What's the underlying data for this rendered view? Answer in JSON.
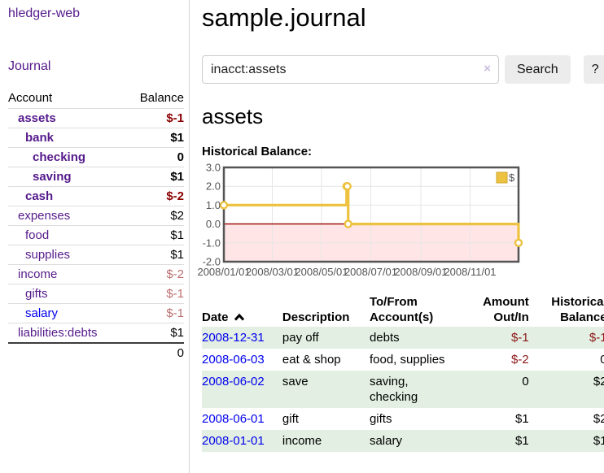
{
  "sidebar": {
    "brand": "hledger-web",
    "nav": {
      "journal_label": "Journal"
    },
    "accounts_table": {
      "headers": {
        "account": "Account",
        "balance": "Balance"
      },
      "rows": [
        {
          "account": "assets",
          "balance": "$-1",
          "depth": 1,
          "bold": true,
          "neg": "strong"
        },
        {
          "account": "bank",
          "balance": "$1",
          "depth": 2,
          "bold": true,
          "neg": null
        },
        {
          "account": "checking",
          "balance": "0",
          "depth": 3,
          "bold": true,
          "neg": null
        },
        {
          "account": "saving",
          "balance": "$1",
          "depth": 3,
          "bold": true,
          "neg": null
        },
        {
          "account": "cash",
          "balance": "$-2",
          "depth": 2,
          "bold": true,
          "neg": "strong"
        },
        {
          "account": "expenses",
          "balance": "$2",
          "depth": 1,
          "bold": false,
          "neg": null
        },
        {
          "account": "food",
          "balance": "$1",
          "depth": 2,
          "bold": false,
          "neg": null
        },
        {
          "account": "supplies",
          "balance": "$1",
          "depth": 2,
          "bold": false,
          "neg": null
        },
        {
          "account": "income",
          "balance": "$-2",
          "depth": 1,
          "bold": false,
          "neg": "muted"
        },
        {
          "account": "gifts",
          "balance": "$-1",
          "depth": 2,
          "bold": false,
          "neg": "muted"
        },
        {
          "account": "salary",
          "balance": "$-1",
          "depth": 2,
          "bold": false,
          "neg": "muted",
          "link_color": "blue"
        },
        {
          "account": "liabilities:debts",
          "balance": "$1",
          "depth": 1,
          "bold": false,
          "neg": null
        }
      ],
      "total": "0"
    }
  },
  "header": {
    "title": "sample.journal"
  },
  "search": {
    "value": "inacct:assets",
    "clear_icon": "×",
    "button_label": "Search",
    "help_label": "?"
  },
  "account_page": {
    "heading": "assets",
    "chart_label": "Historical Balance:"
  },
  "chart_data": {
    "type": "line",
    "step": true,
    "title": "Historical Balance",
    "series": [
      {
        "name": "$",
        "color": "#edc240",
        "points": [
          [
            "2008-01-01",
            1
          ],
          [
            "2008-06-01",
            2
          ],
          [
            "2008-06-02",
            2
          ],
          [
            "2008-06-03",
            0
          ],
          [
            "2008-12-31",
            -1
          ]
        ]
      }
    ],
    "xrange": [
      "2008-01-01",
      "2008-12-31"
    ],
    "ylim": [
      -2,
      3
    ],
    "yticks": [
      {
        "v": 3,
        "label": "3.0"
      },
      {
        "v": 2,
        "label": "2.0"
      },
      {
        "v": 1,
        "label": "1.0"
      },
      {
        "v": 0,
        "label": "0.0"
      },
      {
        "v": -1,
        "label": "-1.0"
      },
      {
        "v": -2,
        "label": "-2.0"
      }
    ],
    "xticks": [
      {
        "date": "2008-01-01",
        "label": "2008/01/01"
      },
      {
        "date": "2008-03-01",
        "label": "2008/03/01"
      },
      {
        "date": "2008-05-01",
        "label": "2008/05/01"
      },
      {
        "date": "2008-07-01",
        "label": "2008/07/01"
      },
      {
        "date": "2008-09-01",
        "label": "2008/09/01"
      },
      {
        "date": "2008-11-01",
        "label": "2008/11/01"
      }
    ],
    "grid": true,
    "legend": {
      "label": "$",
      "position": "top-right"
    },
    "negative_region_color": "rgba(255,0,0,0.10)",
    "zero_line_color": "#9b0000"
  },
  "transactions": {
    "headers": {
      "date": "Date",
      "description": "Description",
      "tofrom": "To/From Account(s)",
      "amount": "Amount Out/In",
      "balance": "Historical Balance"
    },
    "sort": {
      "column": "date",
      "direction": "asc"
    },
    "rows": [
      {
        "date": "2008-12-31",
        "description": "pay off",
        "accounts": "debts",
        "amount": "$-1",
        "balance": "$-1",
        "amount_neg": true,
        "balance_neg": true
      },
      {
        "date": "2008-06-03",
        "description": "eat & shop",
        "accounts": "food, supplies",
        "amount": "$-2",
        "balance": "0",
        "amount_neg": true,
        "balance_neg": false
      },
      {
        "date": "2008-06-02",
        "description": "save",
        "accounts": "saving, checking",
        "amount": "0",
        "balance": "$2",
        "amount_neg": false,
        "balance_neg": false
      },
      {
        "date": "2008-06-01",
        "description": "gift",
        "accounts": "gifts",
        "amount": "$1",
        "balance": "$2",
        "amount_neg": false,
        "balance_neg": false
      },
      {
        "date": "2008-01-01",
        "description": "income",
        "accounts": "salary",
        "amount": "$1",
        "balance": "$1",
        "amount_neg": false,
        "balance_neg": false
      }
    ]
  },
  "colors": {
    "link_purple": "#551a8b",
    "link_blue": "#0000ee",
    "negative_strong": "#8b0000",
    "negative_muted": "#bc6f6f",
    "table_negative": "#8d1616",
    "row_stripe_green": "#e2efe2",
    "chart_line_yellow": "#edc240",
    "plot_border": "#545454",
    "gridline": "#e6e6e6"
  }
}
